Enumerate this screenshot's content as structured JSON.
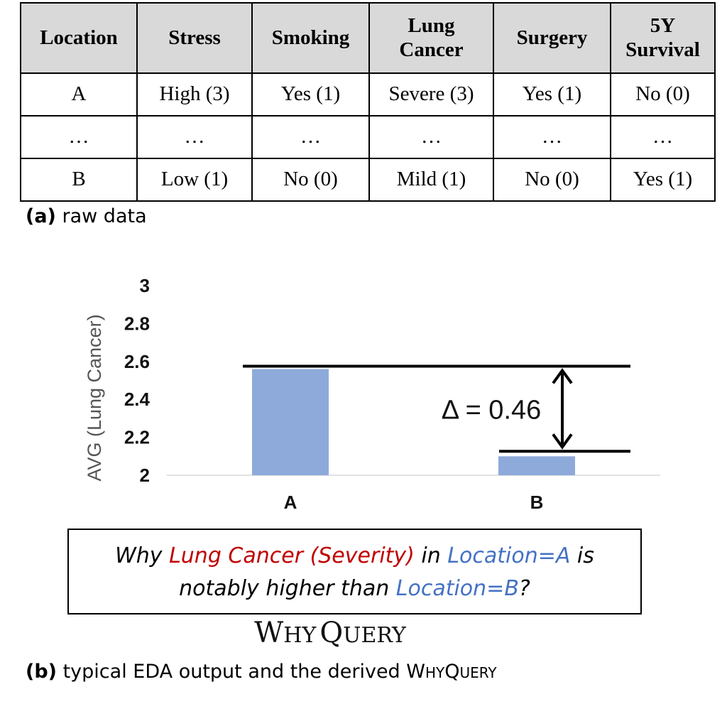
{
  "table": {
    "headers": [
      [
        "Location"
      ],
      [
        "Stress"
      ],
      [
        "Smoking"
      ],
      [
        "Lung",
        "Cancer"
      ],
      [
        "Surgery"
      ],
      [
        "5Y",
        "Survival"
      ]
    ],
    "rows": [
      [
        "A",
        "High (3)",
        "Yes (1)",
        "Severe (3)",
        "Yes (1)",
        "No (0)"
      ],
      [
        "…",
        "…",
        "…",
        "…",
        "…",
        "…"
      ],
      [
        "B",
        "Low (1)",
        "No (0)",
        "Mild (1)",
        "No (0)",
        "Yes (1)"
      ]
    ]
  },
  "caption_a": {
    "label": "(a)",
    "text": "raw data"
  },
  "chart_data": {
    "type": "bar",
    "categories": [
      "A",
      "B"
    ],
    "values": [
      2.56,
      2.1
    ],
    "ylabel": "AVG (Lung Cancer)",
    "ylim": [
      2,
      3
    ],
    "yticks": [
      "3",
      "2.8",
      "2.6",
      "2.4",
      "2.2",
      "2"
    ],
    "bar_color": "#8eaadb",
    "annotation": "Δ = 0.46"
  },
  "query": {
    "p1": "Why ",
    "p2": "Lung Cancer (Severity)",
    "p3": " in ",
    "p4": "Location=A",
    "p5": " is",
    "p6": "notably higher than ",
    "p7": "Location=B",
    "p8": "?"
  },
  "why_title": {
    "w1": "W",
    "w2": "HY",
    "q1": "Q",
    "q2": "UERY"
  },
  "caption_b": {
    "label": "(b)",
    "text": " typical EDA output and the derived ",
    "sc1": "W",
    "sc2": "HY",
    "sc3": "Q",
    "sc4": "UERY"
  }
}
